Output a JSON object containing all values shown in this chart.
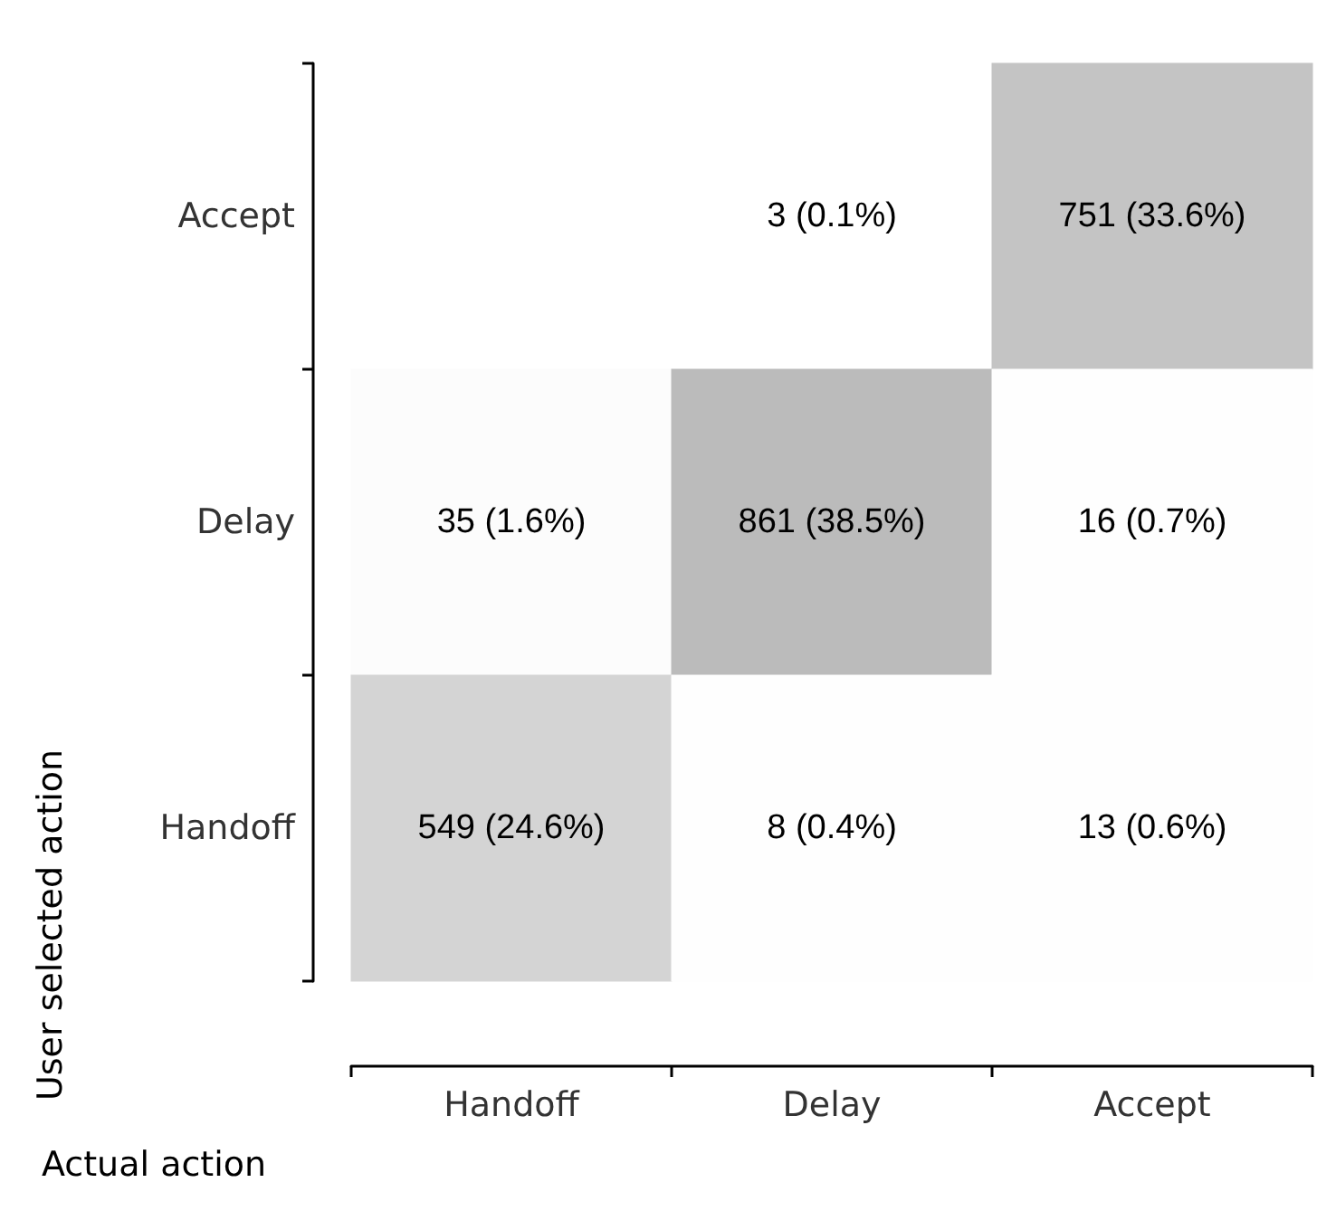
{
  "chart_data": {
    "type": "heatmap",
    "xlabel": "Actual action",
    "ylabel": "User selected action",
    "categories": [
      "Handoff",
      "Delay",
      "Accept"
    ],
    "y_categories": [
      "Accept",
      "Delay",
      "Handoff"
    ],
    "data_labels": true,
    "cells": [
      [
        null,
        3,
        751
      ],
      [
        35,
        861,
        16
      ],
      [
        549,
        8,
        13
      ]
    ],
    "annotations": [
      "(0.1%)",
      "(33.6%)",
      "(1.6%)",
      "(38.5%)",
      "(0.7%)",
      "(24.6%)",
      "(0.4%)",
      "(0.6%)"
    ]
  }
}
